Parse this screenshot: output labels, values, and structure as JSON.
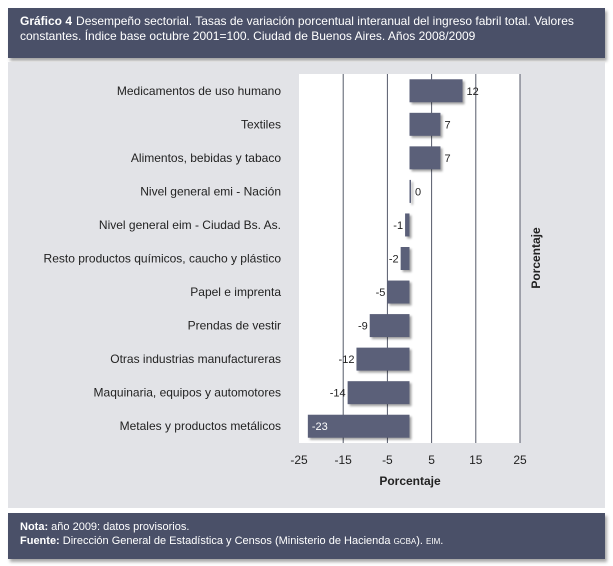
{
  "header": {
    "label": "Gráfico 4",
    "title": "Desempeño sectorial. Tasas de variación porcentual interanual del ingreso fabril total. Valores constantes.  Índice base octubre 2001=100. Ciudad de Buenos Aires. Años 2008/2009"
  },
  "chart_data": {
    "type": "bar",
    "orientation": "horizontal",
    "categories": [
      "Medicamentos de uso humano",
      "Textiles",
      "Alimentos, bebidas y tabaco",
      "Nivel general emi - Nación",
      "Nivel general eim - Ciudad Bs. As.",
      "Resto productos químicos, caucho y plástico",
      "Papel e imprenta",
      "Prendas de vestir",
      "Otras industrias manufactureras",
      "Maquinaria, equipos y automotores",
      "Metales y productos metálicos"
    ],
    "values": [
      12,
      7,
      7,
      0,
      -1,
      -2,
      -5,
      -9,
      -12,
      -14,
      -23
    ],
    "data_labels": [
      "12",
      "7",
      "7",
      "0",
      "-1",
      "-2",
      "-5",
      "-9",
      "-12",
      "-14",
      "-23"
    ],
    "xlabel": "Porcentaje",
    "ylabel": "Porcentaje",
    "xlim": [
      -25,
      25
    ],
    "xticks": [
      -25,
      -15,
      -5,
      5,
      15,
      25
    ],
    "xtick_labels": [
      "-25",
      "-15",
      "-5",
      "5",
      "15",
      "25"
    ],
    "gridlines": true,
    "bar_color": "#5b6079"
  },
  "footer": {
    "nota_label": "Nota:",
    "nota_text": "año 2009: datos provisorios.",
    "fuente_label": "Fuente:",
    "fuente_text": "Dirección General de Estadística y Censos (Ministerio de Hacienda",
    "fuente_sc1": "GCBA",
    "fuente_mid": ").",
    "fuente_sc2": "EIM",
    "fuente_end": "."
  },
  "colors": {
    "header_bg": "#4a5068",
    "panel_bg": "#e2e3e7",
    "bar": "#5b6079"
  }
}
